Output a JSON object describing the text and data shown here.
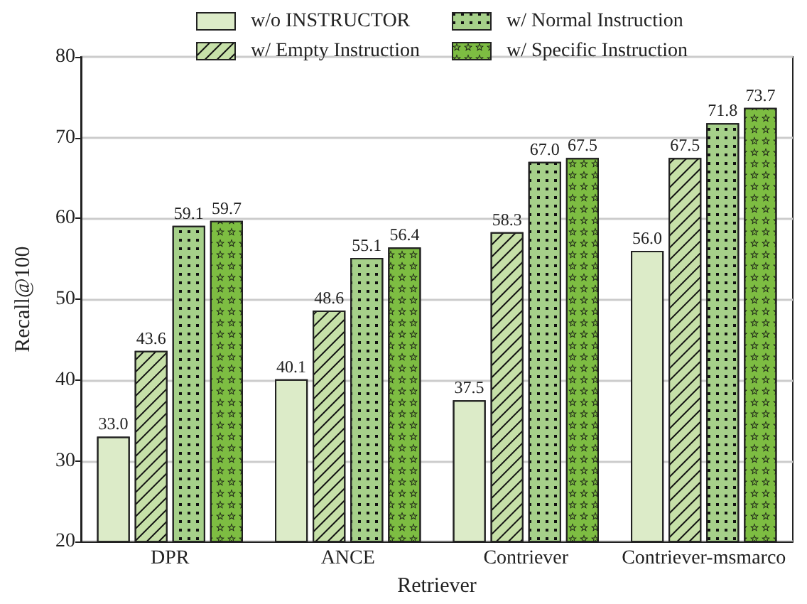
{
  "chart_data": {
    "type": "bar",
    "xlabel": "Retriever",
    "ylabel": "Recall@100",
    "categories": [
      "DPR",
      "ANCE",
      "Contriever",
      "Contriever-msmarco"
    ],
    "series": [
      {
        "name": "w/o INSTRUCTOR",
        "color": "#dcebc8",
        "values": [
          33.0,
          40.1,
          37.5,
          56.0
        ],
        "value_labels": [
          "33.0",
          "40.1",
          "37.5",
          "56.0"
        ]
      },
      {
        "name": "w/ Empty Instruction",
        "color": "#c6e0a8",
        "values": [
          43.6,
          48.6,
          58.3,
          67.5
        ],
        "value_labels": [
          "43.6",
          "48.6",
          "58.3",
          "67.5"
        ]
      },
      {
        "name": "w/ Normal Instruction",
        "color": "#a6d08a",
        "values": [
          59.1,
          55.1,
          67.0,
          71.8
        ],
        "value_labels": [
          "59.1",
          "55.1",
          "67.0",
          "71.8"
        ]
      },
      {
        "name": "w/ Specific Instruction",
        "color": "#7dbd42",
        "values": [
          59.7,
          56.4,
          67.5,
          73.7
        ],
        "value_labels": [
          "59.7",
          "56.4",
          "67.5",
          "73.7"
        ]
      }
    ],
    "ylim": [
      20,
      80
    ],
    "yticks": [
      20,
      30,
      40,
      50,
      60,
      70,
      80
    ],
    "grid": "y",
    "legend": "top"
  }
}
